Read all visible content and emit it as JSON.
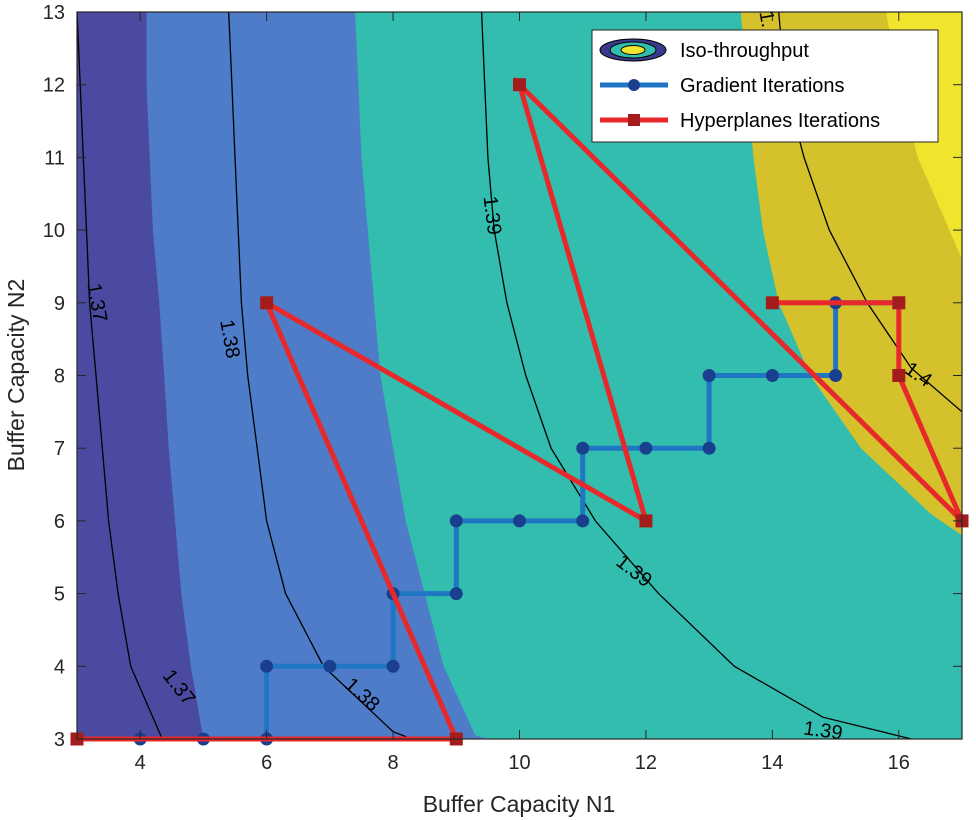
{
  "chart_data": {
    "type": "contour",
    "xlabel": "Buffer Capacity N1",
    "ylabel": "Buffer Capacity N2",
    "xlim": [
      3,
      17
    ],
    "ylim": [
      3,
      13
    ],
    "xticks": [
      4,
      6,
      8,
      10,
      12,
      14,
      16
    ],
    "yticks": [
      3,
      4,
      5,
      6,
      7,
      8,
      9,
      10,
      11,
      12,
      13
    ],
    "grid": false,
    "legend_position": "top-right",
    "contour_levels": [
      {
        "level": "1.37",
        "color": "#4a4aa0",
        "points": [
          [
            3,
            3.5
          ],
          [
            4,
            3.33
          ],
          [
            4.8,
            3
          ]
        ],
        "extend": [
          [
            3,
            3.3
          ],
          [
            3,
            3.5
          ]
        ]
      },
      {
        "level": "1.38",
        "color": "#4e7cc8",
        "points": [
          [
            4.1,
            13
          ],
          [
            4.1,
            12
          ],
          [
            4.15,
            11
          ],
          [
            4.2,
            10
          ],
          [
            4.3,
            9
          ],
          [
            4.38,
            8
          ],
          [
            4.45,
            7
          ],
          [
            4.55,
            6
          ],
          [
            4.65,
            5
          ],
          [
            4.8,
            4
          ],
          [
            5,
            3
          ]
        ]
      },
      {
        "level": "1.39",
        "color": "#32bdae",
        "points": [
          [
            7.4,
            13
          ],
          [
            7.45,
            12
          ],
          [
            7.5,
            11
          ],
          [
            7.6,
            10
          ],
          [
            7.7,
            9
          ],
          [
            7.8,
            8
          ],
          [
            8.0,
            7
          ],
          [
            8.2,
            6
          ],
          [
            8.5,
            5
          ],
          [
            8.8,
            4
          ],
          [
            9.3,
            3.05
          ],
          [
            9.5,
            3
          ]
        ]
      },
      {
        "level": "1.40",
        "color": "#d4c12c",
        "points": [
          [
            13.5,
            13
          ],
          [
            13.6,
            12
          ],
          [
            13.7,
            11
          ],
          [
            13.85,
            10
          ],
          [
            14.1,
            9
          ],
          [
            14.6,
            8
          ],
          [
            15.4,
            7
          ],
          [
            16.5,
            6.1
          ],
          [
            17,
            5.8
          ]
        ]
      },
      {
        "level": "1.41",
        "color": "#f0e52c",
        "points": [
          [
            15.8,
            13
          ],
          [
            16,
            12
          ],
          [
            16.3,
            11
          ],
          [
            16.8,
            10
          ],
          [
            17,
            9.6
          ]
        ]
      }
    ],
    "contour_boundaries": [
      {
        "label": "1.37",
        "points": [
          [
            3,
            13
          ],
          [
            3.05,
            12
          ],
          [
            3.1,
            11
          ],
          [
            3.15,
            10
          ],
          [
            3.2,
            9
          ],
          [
            3.3,
            8
          ],
          [
            3.4,
            7
          ],
          [
            3.5,
            6
          ],
          [
            3.65,
            5
          ],
          [
            3.85,
            4
          ],
          [
            4.35,
            3
          ]
        ]
      },
      {
        "label": "1.38",
        "points": [
          [
            5.4,
            13
          ],
          [
            5.45,
            12
          ],
          [
            5.5,
            11
          ],
          [
            5.55,
            10
          ],
          [
            5.6,
            9
          ],
          [
            5.7,
            8
          ],
          [
            5.85,
            7
          ],
          [
            6.0,
            6
          ],
          [
            6.3,
            5
          ],
          [
            6.9,
            4
          ],
          [
            8.0,
            3.1
          ],
          [
            8.3,
            3
          ]
        ]
      },
      {
        "label": "1.39",
        "points": [
          [
            9.4,
            13
          ],
          [
            9.45,
            12
          ],
          [
            9.5,
            11
          ],
          [
            9.6,
            10
          ],
          [
            9.8,
            9
          ],
          [
            10.1,
            8
          ],
          [
            10.5,
            7
          ],
          [
            11.2,
            6
          ],
          [
            12.2,
            5
          ],
          [
            13.4,
            4
          ],
          [
            14.8,
            3.3
          ],
          [
            16.2,
            3
          ]
        ]
      },
      {
        "label": "1.4",
        "points": [
          [
            14.1,
            13
          ],
          [
            14.2,
            12
          ],
          [
            14.5,
            11
          ],
          [
            14.9,
            10
          ],
          [
            15.5,
            9
          ],
          [
            16.2,
            8.1
          ],
          [
            17,
            7.5
          ]
        ]
      }
    ],
    "contour_label_positions": [
      {
        "text": "1.37",
        "x": 3.3,
        "y": 9.0,
        "angle": 80
      },
      {
        "text": "1.37",
        "x": 4.6,
        "y": 3.7,
        "angle": 52
      },
      {
        "text": "1.38",
        "x": 5.4,
        "y": 8.5,
        "angle": 80
      },
      {
        "text": "1.38",
        "x": 7.5,
        "y": 3.6,
        "angle": 42
      },
      {
        "text": "1.39",
        "x": 9.55,
        "y": 10.2,
        "angle": 83
      },
      {
        "text": "1.39",
        "x": 11.8,
        "y": 5.3,
        "angle": 38
      },
      {
        "text": "1.39",
        "x": 14.8,
        "y": 3.1,
        "angle": 8
      },
      {
        "text": "1.4",
        "x": 16.3,
        "y": 8.0,
        "angle": 35
      },
      {
        "text": "1.",
        "x": 13.9,
        "y": 12.9,
        "angle": 80
      }
    ],
    "series": [
      {
        "name": "Gradient Iterations",
        "color": "#1f77c4",
        "marker": "circle",
        "x": [
          3,
          4,
          5,
          6,
          6,
          7,
          8,
          8,
          9,
          9,
          10,
          11,
          11,
          12,
          13,
          13,
          14,
          15,
          15,
          16
        ],
        "y": [
          3,
          3,
          3,
          3,
          4,
          4,
          4,
          5,
          5,
          6,
          6,
          6,
          7,
          7,
          7,
          8,
          8,
          8,
          9,
          9
        ]
      },
      {
        "name": "Hyperplanes Iterations",
        "color": "#e8292b",
        "marker": "square",
        "x": [
          3,
          9,
          6,
          12,
          10,
          17,
          16,
          16,
          14
        ],
        "y": [
          3,
          3,
          9,
          6,
          12,
          6,
          8,
          9,
          9
        ]
      }
    ],
    "legend": [
      {
        "label": "Iso-throughput",
        "kind": "contour"
      },
      {
        "label": "Gradient Iterations",
        "kind": "line-circle"
      },
      {
        "label": "Hyperplanes Iterations",
        "kind": "line-square"
      }
    ]
  }
}
